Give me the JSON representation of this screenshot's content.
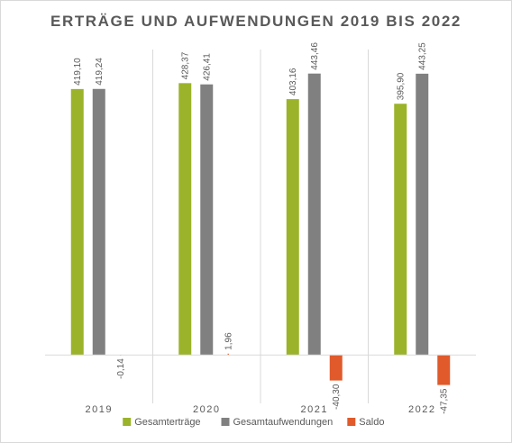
{
  "chart_data": {
    "type": "bar",
    "title": "ERTRÄGE UND AUFWENDUNGEN 2019 BIS 2022",
    "categories": [
      "2019",
      "2020",
      "2021",
      "2022"
    ],
    "series": [
      {
        "name": "Gesamterträge",
        "color": "#9bb32a",
        "values": [
          419.1,
          428.37,
          403.16,
          395.9
        ],
        "labels": [
          "419,10",
          "428,37",
          "403,16",
          "395,90"
        ]
      },
      {
        "name": "Gesamtaufwendungen",
        "color": "#808080",
        "values": [
          419.24,
          426.41,
          443.46,
          443.25
        ],
        "labels": [
          "419,24",
          "426,41",
          "443,46",
          "443,25"
        ]
      },
      {
        "name": "Saldo",
        "color": "#e05a2b",
        "values": [
          -0.14,
          1.96,
          -40.3,
          -47.35
        ],
        "labels": [
          "-0,14",
          "1,96",
          "-40,30",
          "-47,35"
        ]
      }
    ],
    "ylim": [
      -65,
      470
    ],
    "grid": false,
    "legend": "bottom"
  }
}
